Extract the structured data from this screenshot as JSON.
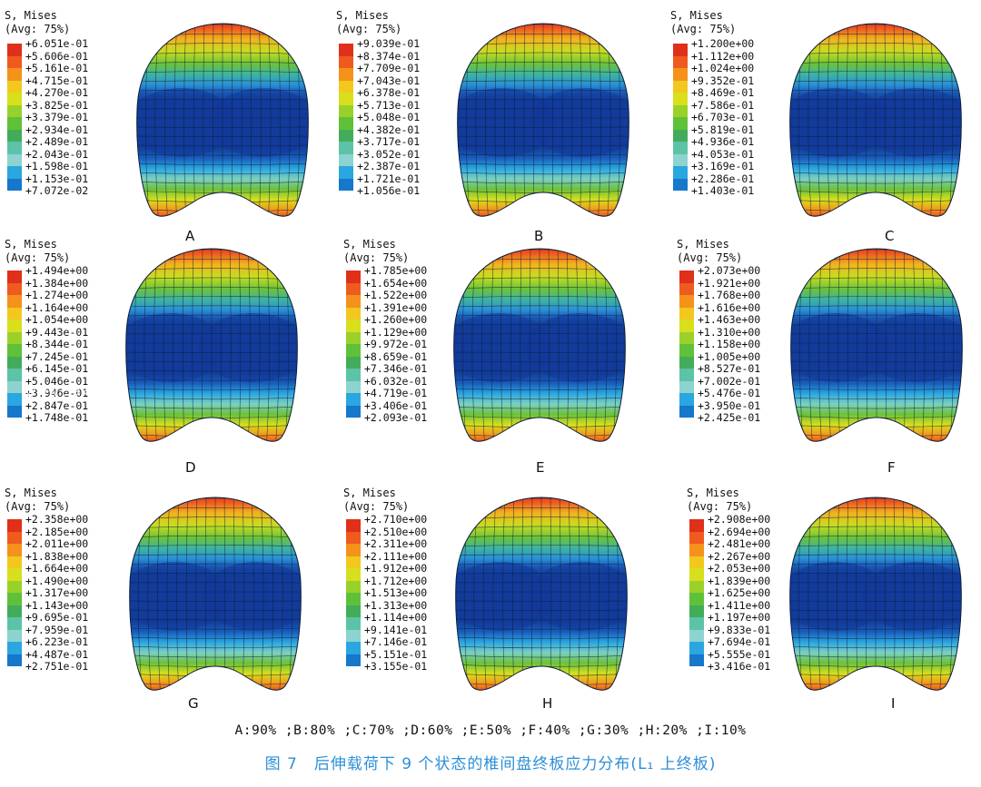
{
  "legend_colors": [
    "#e0301a",
    "#ef5a1f",
    "#f4921c",
    "#f2c81e",
    "#d8df1c",
    "#99d12a",
    "#5fc13a",
    "#43ac5a",
    "#5cc3a8",
    "#8dd3d0",
    "#2aa6e0",
    "#1677cb",
    "#1547a5"
  ],
  "panels": [
    {
      "title": "S, Mises",
      "avg": "(Avg: 75%)",
      "label": "A",
      "values": [
        "+6.051e-01",
        "+5.606e-01",
        "+5.161e-01",
        "+4.715e-01",
        "+4.270e-01",
        "+3.825e-01",
        "+3.379e-01",
        "+2.934e-01",
        "+2.489e-01",
        "+2.043e-01",
        "+1.598e-01",
        "+1.153e-01",
        "+7.072e-02"
      ]
    },
    {
      "title": "S, Mises",
      "avg": "(Avg: 75%)",
      "label": "B",
      "values": [
        "+9.039e-01",
        "+8.374e-01",
        "+7.709e-01",
        "+7.043e-01",
        "+6.378e-01",
        "+5.713e-01",
        "+5.048e-01",
        "+4.382e-01",
        "+3.717e-01",
        "+3.052e-01",
        "+2.387e-01",
        "+1.721e-01",
        "+1.056e-01"
      ]
    },
    {
      "title": "S, Mises",
      "avg": "(Avg: 75%)",
      "label": "C",
      "values": [
        "+1.200e+00",
        "+1.112e+00",
        "+1.024e+00",
        "+9.352e-01",
        "+8.469e-01",
        "+7.586e-01",
        "+6.703e-01",
        "+5.819e-01",
        "+4.936e-01",
        "+4.053e-01",
        "+3.169e-01",
        "+2.286e-01",
        "+1.403e-01"
      ]
    },
    {
      "title": "S, Mises",
      "avg": "(Avg: 75%)",
      "label": "D",
      "values": [
        "+1.494e+00",
        "+1.384e+00",
        "+1.274e+00",
        "+1.164e+00",
        "+1.054e+00",
        "+9.443e-01",
        "+8.344e-01",
        "+7.245e-01",
        "+6.145e-01",
        "+5.046e-01",
        "+3.946e-01",
        "+2.847e-01",
        "+1.748e-01"
      ]
    },
    {
      "title": "S, Mises",
      "avg": "(Avg: 75%)",
      "label": "E",
      "values": [
        "+1.785e+00",
        "+1.654e+00",
        "+1.522e+00",
        "+1.391e+00",
        "+1.260e+00",
        "+1.129e+00",
        "+9.972e-01",
        "+8.659e-01",
        "+7.346e-01",
        "+6.032e-01",
        "+4.719e-01",
        "+3.406e-01",
        "+2.093e-01"
      ]
    },
    {
      "title": "S, Mises",
      "avg": "(Avg: 75%)",
      "label": "F",
      "values": [
        "+2.073e+00",
        "+1.921e+00",
        "+1.768e+00",
        "+1.616e+00",
        "+1.463e+00",
        "+1.310e+00",
        "+1.158e+00",
        "+1.005e+00",
        "+8.527e-01",
        "+7.002e-01",
        "+5.476e-01",
        "+3.950e-01",
        "+2.425e-01"
      ]
    },
    {
      "title": "S, Mises",
      "avg": "(Avg: 75%)",
      "label": "G",
      "values": [
        "+2.358e+00",
        "+2.185e+00",
        "+2.011e+00",
        "+1.838e+00",
        "+1.664e+00",
        "+1.490e+00",
        "+1.317e+00",
        "+1.143e+00",
        "+9.695e-01",
        "+7.959e-01",
        "+6.223e-01",
        "+4.487e-01",
        "+2.751e-01"
      ]
    },
    {
      "title": "S, Mises",
      "avg": "(Avg: 75%)",
      "label": "H",
      "values": [
        "+2.710e+00",
        "+2.510e+00",
        "+2.311e+00",
        "+2.111e+00",
        "+1.912e+00",
        "+1.712e+00",
        "+1.513e+00",
        "+1.313e+00",
        "+1.114e+00",
        "+9.141e-01",
        "+7.146e-01",
        "+5.151e-01",
        "+3.155e-01"
      ]
    },
    {
      "title": "S, Mises",
      "avg": "(Avg: 75%)",
      "label": "I",
      "values": [
        "+2.908e+00",
        "+2.694e+00",
        "+2.481e+00",
        "+2.267e+00",
        "+2.053e+00",
        "+1.839e+00",
        "+1.625e+00",
        "+1.411e+00",
        "+1.197e+00",
        "+9.833e-01",
        "+7.694e-01",
        "+5.555e-01",
        "+3.416e-01"
      ]
    }
  ],
  "caption_states": "A:90% ;B:80% ;C:70% ;D:60% ;E:50% ;F:40% ;G:30% ;H:20% ;I:10%",
  "caption_title": "图 7　后伸载荷下 9 个状态的椎间盘终板应力分布(L₁ 上终板)",
  "watermark": "www.39kf.com"
}
